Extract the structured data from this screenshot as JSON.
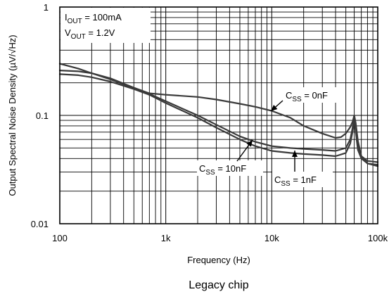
{
  "chart_data": {
    "type": "line",
    "x_scale": "log",
    "y_scale": "log",
    "xlim": [
      100,
      100000
    ],
    "ylim": [
      0.01,
      1
    ],
    "grid": true,
    "xlabel": "Frequency (Hz)",
    "ylabel": "Output Spectral Noise Density (µV/√Hz)",
    "caption": "Legacy chip",
    "x_ticks": [
      {
        "value": 100,
        "label": "100"
      },
      {
        "value": 1000,
        "label": "1k"
      },
      {
        "value": 10000,
        "label": "10k"
      },
      {
        "value": 100000,
        "label": "100k"
      }
    ],
    "y_ticks": [
      {
        "value": 0.01,
        "label": "0.01"
      },
      {
        "value": 0.1,
        "label": "0.1"
      },
      {
        "value": 1,
        "label": "1"
      }
    ],
    "conditions": {
      "iout": {
        "symbol": "I",
        "sub": "OUT",
        "rest": " = 100mA"
      },
      "vout": {
        "symbol": "V",
        "sub": "OUT",
        "rest": " = 1.2V"
      }
    },
    "series": [
      {
        "name": "CSS = 0nF",
        "label": {
          "symbol": "C",
          "sub": "SS",
          "rest": " = 0nF"
        },
        "x": [
          100,
          150,
          200,
          300,
          500,
          700,
          1000,
          2000,
          3000,
          5000,
          7000,
          10000,
          15000,
          20000,
          30000,
          40000,
          45000,
          50000,
          55000,
          58000,
          60000,
          62000,
          65000,
          70000,
          80000,
          100000
        ],
        "y": [
          0.26,
          0.255,
          0.245,
          0.22,
          0.18,
          0.16,
          0.155,
          0.148,
          0.14,
          0.128,
          0.12,
          0.11,
          0.095,
          0.08,
          0.068,
          0.062,
          0.063,
          0.068,
          0.078,
          0.088,
          0.1,
          0.085,
          0.058,
          0.042,
          0.036,
          0.034
        ]
      },
      {
        "name": "CSS = 10nF",
        "label": {
          "symbol": "C",
          "sub": "SS",
          "rest": " = 10nF"
        },
        "x": [
          100,
          150,
          200,
          300,
          500,
          700,
          1000,
          2000,
          3000,
          5000,
          7000,
          10000,
          15000,
          20000,
          30000,
          40000,
          50000,
          55000,
          58000,
          60000,
          62000,
          65000,
          70000,
          80000,
          100000
        ],
        "y": [
          0.3,
          0.27,
          0.245,
          0.215,
          0.178,
          0.158,
          0.135,
          0.1,
          0.082,
          0.064,
          0.057,
          0.052,
          0.05,
          0.049,
          0.048,
          0.047,
          0.05,
          0.06,
          0.078,
          0.1,
          0.075,
          0.052,
          0.042,
          0.038,
          0.037
        ]
      },
      {
        "name": "CSS = 1nF",
        "label": {
          "symbol": "C",
          "sub": "SS",
          "rest": " = 1nF"
        },
        "x": [
          100,
          150,
          200,
          300,
          500,
          700,
          1000,
          2000,
          3000,
          5000,
          7000,
          10000,
          15000,
          20000,
          30000,
          40000,
          50000,
          55000,
          58000,
          60000,
          62000,
          65000,
          70000,
          80000,
          100000
        ],
        "y": [
          0.24,
          0.235,
          0.225,
          0.205,
          0.175,
          0.155,
          0.13,
          0.095,
          0.077,
          0.06,
          0.052,
          0.047,
          0.045,
          0.044,
          0.043,
          0.042,
          0.045,
          0.055,
          0.072,
          0.095,
          0.07,
          0.048,
          0.04,
          0.036,
          0.035
        ]
      }
    ]
  }
}
